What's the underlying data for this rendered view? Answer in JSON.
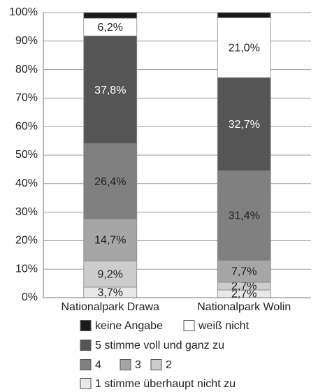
{
  "chart_data": {
    "type": "stacked_bar",
    "categories": [
      "Nationalpark Drawa",
      "Nationalpark Wolin"
    ],
    "ylim": [
      0,
      100
    ],
    "yticks": [
      {
        "value": 0,
        "label": "0%"
      },
      {
        "value": 10,
        "label": "10%"
      },
      {
        "value": 20,
        "label": "20%"
      },
      {
        "value": 30,
        "label": "30%"
      },
      {
        "value": 40,
        "label": "40%"
      },
      {
        "value": 50,
        "label": "50%"
      },
      {
        "value": 60,
        "label": "60%"
      },
      {
        "value": 70,
        "label": "70%"
      },
      {
        "value": 80,
        "label": "80%"
      },
      {
        "value": 90,
        "label": "90%"
      },
      {
        "value": 100,
        "label": "100%"
      }
    ],
    "grid": true,
    "series": [
      {
        "name": "keine Angabe",
        "color": "#1a1a1a",
        "values": [
          2.0,
          1.8
        ]
      },
      {
        "name": "weiß nicht",
        "color": "#ffffff",
        "values": [
          6.2,
          21.0
        ],
        "value_labels": [
          "6,2%",
          "21,0%"
        ]
      },
      {
        "name": "5 stimme voll und ganz zu",
        "color": "#555555",
        "values": [
          37.8,
          32.7
        ],
        "value_labels": [
          "37,8%",
          "32,7%"
        ]
      },
      {
        "name": "4",
        "color": "#808080",
        "values": [
          26.4,
          31.4
        ],
        "value_labels": [
          "26,4%",
          "31,4%"
        ]
      },
      {
        "name": "3",
        "color": "#a6a6a6",
        "values": [
          14.7,
          7.7
        ],
        "value_labels": [
          "14,7%",
          "7,7%"
        ]
      },
      {
        "name": "2",
        "color": "#cccccc",
        "values": [
          9.2,
          2.7
        ],
        "value_labels": [
          "9,2%",
          "2,7%"
        ]
      },
      {
        "name": "1 stimme überhaupt nicht zu",
        "color": "#e8e8e8",
        "values": [
          3.7,
          2.7
        ],
        "value_labels": [
          "3,7%",
          "2,7%"
        ]
      }
    ]
  }
}
